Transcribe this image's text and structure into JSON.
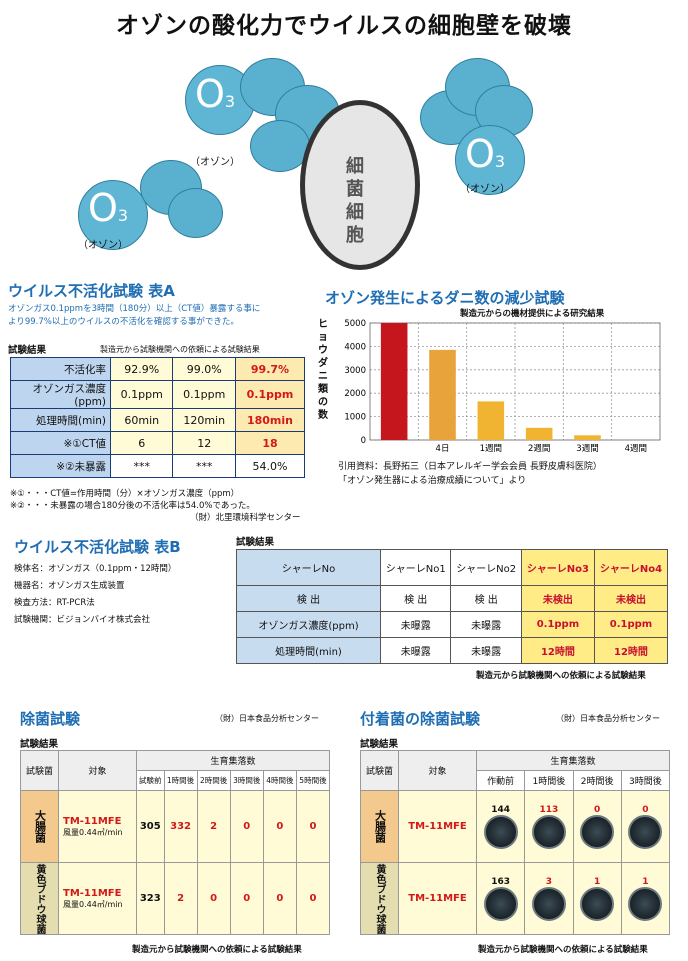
{
  "header": {
    "title": "オゾンの酸化力でウイルスの細胞壁を破壊"
  },
  "illus": {
    "o3": "O",
    "sub": "3",
    "ozone": "（オゾン）",
    "bacteria": [
      "細",
      "菌",
      "細",
      "胞"
    ]
  },
  "tableA": {
    "title": "ウイルス不活化試験 表A",
    "desc1": "オゾンガス0.1ppmを3時間（180分）以上（CT値）暴露する事に",
    "desc2": "より99.7%以上のウイルスの不活化を確認する事ができた。",
    "result_label": "試験結果",
    "note": "製造元から試験機関への依頼による試験結果",
    "rows": [
      {
        "label": "不活化率",
        "v": [
          "92.9%",
          "99.0%",
          "99.7%"
        ]
      },
      {
        "label": "オゾンガス濃度(ppm)",
        "v": [
          "0.1ppm",
          "0.1ppm",
          "0.1ppm"
        ]
      },
      {
        "label": "処理時間(min)",
        "v": [
          "60min",
          "120min",
          "180min"
        ]
      },
      {
        "label": "※①CT値",
        "v": [
          "6",
          "12",
          "18"
        ]
      },
      {
        "label": "※②未暴露",
        "v": [
          "***",
          "***",
          "54.0%"
        ]
      }
    ],
    "foot1": "※①・・・CT値=作用時間（分）×オゾンガス濃度（ppm）",
    "foot2": "※②・・・未暴露の場合180分後の不活化率は54.0%であった。",
    "foot3": "（財）北里環境科学センター"
  },
  "mites": {
    "title": "オゾン発生によるダニ数の減少試験",
    "subtitle": "製造元からの機材提供による研究結果",
    "ref1": "引用資料：長野拓三（日本アレルギー学会会員 長野皮膚科医院）",
    "ref2": "「オゾン発生器による治療成績について」より"
  },
  "chart_data": {
    "type": "bar",
    "categories": [
      "",
      "4日",
      "1週間",
      "2週間",
      "3週間",
      "4週間"
    ],
    "values": [
      5000,
      3850,
      1650,
      520,
      200,
      0
    ],
    "ylabel": "ヒョウダニ類の数",
    "yticks": [
      "5000",
      "4000",
      "3000",
      "2000",
      "1000",
      "0"
    ],
    "ylim": [
      0,
      5000
    ],
    "colors": [
      "#c4161c",
      "#e8a33a",
      "#f0b432",
      "#f0b432",
      "#f0b432",
      "#f0b432"
    ]
  },
  "tableB": {
    "title": "ウイルス不活化試験 表B",
    "info": [
      "検体名：オゾンガス（0.1ppm・12時間）",
      "機器名：オゾンガス生成装置",
      "検査方法：RT-PCR法",
      "試験機関：ビジョンバイオ株式会社"
    ],
    "result_label": "試験結果",
    "head": [
      "シャーレNo",
      "シャーレNo1",
      "シャーレNo2",
      "シャーレNo3",
      "シャーレNo4"
    ],
    "rows": [
      {
        "label": "検 出",
        "v": [
          "検 出",
          "検 出",
          "未検出",
          "未検出"
        ]
      },
      {
        "label": "オゾンガス濃度(ppm)",
        "v": [
          "未曝露",
          "未曝露",
          "0.1ppm",
          "0.1ppm"
        ]
      },
      {
        "label": "処理時間(min)",
        "v": [
          "未曝露",
          "未曝露",
          "12時間",
          "12時間"
        ]
      }
    ],
    "note": "製造元から試験機関への依頼による試験結果"
  },
  "jokin": {
    "title": "除菌試験",
    "org": "（財）日本食品分析センター",
    "result_label": "試験結果",
    "h_bac": "試験菌",
    "h_target": "対象",
    "h_count": "生育集落数",
    "times": [
      "試験前",
      "1時間後",
      "2時間後",
      "3時間後",
      "4時間後",
      "5時間後"
    ],
    "rows": [
      {
        "bac": "大腸菌",
        "model": "TM-11MFE",
        "air": "風量0.44㎥/min",
        "v": [
          "305",
          "332",
          "2",
          "0",
          "0",
          "0"
        ]
      },
      {
        "bac": "黄色ブドウ球菌",
        "model": "TM-11MFE",
        "air": "風量0.44㎥/min",
        "v": [
          "323",
          "2",
          "0",
          "0",
          "0",
          "0"
        ]
      }
    ],
    "note": "製造元から試験機関への依頼による試験結果"
  },
  "fuchaku": {
    "title": "付着菌の除菌試験",
    "org": "（財）日本食品分析センター",
    "result_label": "試験結果",
    "h_bac": "試験菌",
    "h_target": "対象",
    "h_count": "生育集落数",
    "times": [
      "作動前",
      "1時間後",
      "2時間後",
      "3時間後"
    ],
    "rows": [
      {
        "bac": "大腸菌",
        "model": "TM-11MFE",
        "v": [
          "144",
          "113",
          "0",
          "0"
        ]
      },
      {
        "bac": "黄色ブドウ球菌",
        "model": "TM-11MFE",
        "v": [
          "163",
          "3",
          "1",
          "1"
        ]
      }
    ],
    "note": "製造元から試験機関への依頼による試験結果"
  }
}
